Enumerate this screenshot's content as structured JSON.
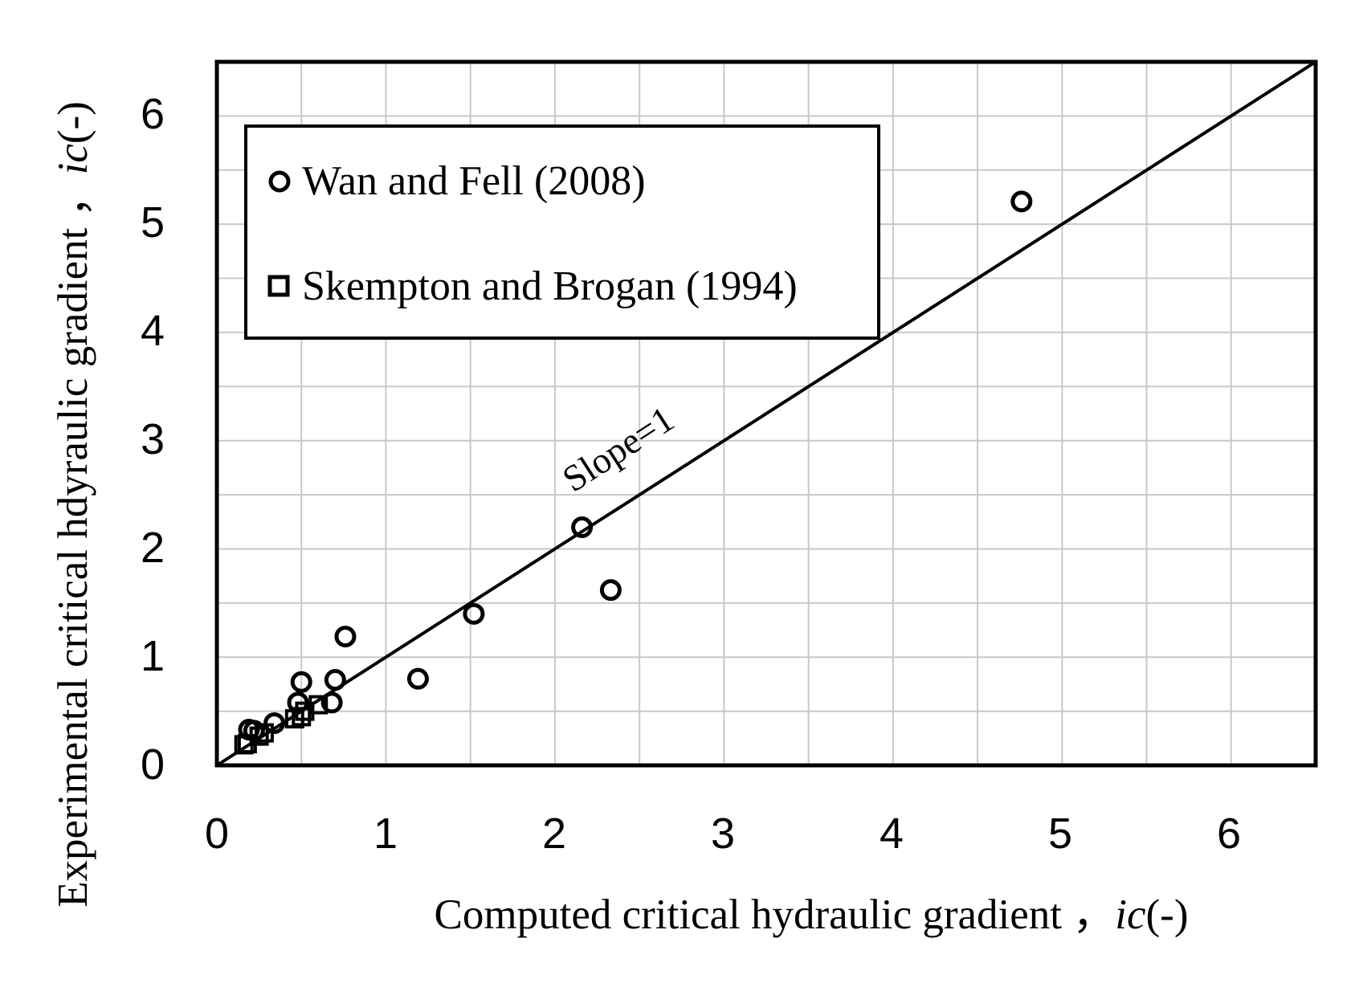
{
  "chart_data": {
    "type": "scatter",
    "title": "",
    "xlabel": {
      "text": "Computed critical hydraulic gradient ，",
      "symbol": "ic",
      "unit": "(-)"
    },
    "ylabel": {
      "text": "Experimental critical hdyraulic gradient ，",
      "symbol": "ic",
      "unit": "(-)"
    },
    "xlim": [
      0,
      6.5
    ],
    "ylim": [
      0,
      6.5
    ],
    "x_ticks": [
      "0",
      "1",
      "2",
      "3",
      "4",
      "5",
      "6"
    ],
    "y_ticks": [
      "0",
      "1",
      "2",
      "3",
      "4",
      "5",
      "6"
    ],
    "minor_grid_step": 0.5,
    "grid": true,
    "legend_position": "top-left",
    "series": [
      {
        "name": "Wan and Fell (2008)",
        "marker": "circle",
        "points": [
          [
            0.19,
            0.33
          ],
          [
            0.22,
            0.32
          ],
          [
            0.34,
            0.39
          ],
          [
            0.48,
            0.58
          ],
          [
            0.5,
            0.77
          ],
          [
            0.68,
            0.58
          ],
          [
            0.7,
            0.79
          ],
          [
            0.76,
            1.19
          ],
          [
            1.19,
            0.8
          ],
          [
            1.52,
            1.4
          ],
          [
            2.16,
            2.2
          ],
          [
            2.33,
            1.62
          ],
          [
            4.76,
            5.21
          ]
        ]
      },
      {
        "name": "Skempton and Brogan (1994)",
        "marker": "square",
        "points": [
          [
            0.16,
            0.19
          ],
          [
            0.18,
            0.2
          ],
          [
            0.25,
            0.27
          ],
          [
            0.28,
            0.3
          ],
          [
            0.46,
            0.43
          ],
          [
            0.5,
            0.45
          ],
          [
            0.52,
            0.5
          ],
          [
            0.6,
            0.56
          ]
        ]
      }
    ],
    "reference_line": {
      "label": "Slope=1",
      "slope": 1,
      "intercept": 0
    },
    "colors": {
      "axis": "#000000",
      "grid": "#c8c8c8",
      "marker": "#000000",
      "background": "#ffffff"
    }
  }
}
